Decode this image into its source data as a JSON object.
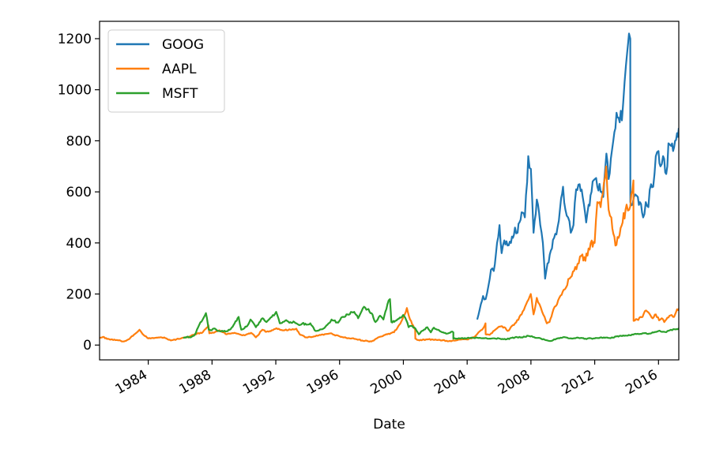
{
  "chart_data": {
    "type": "line",
    "title": "",
    "xlabel": "Date",
    "ylabel": "",
    "xlim": [
      "1980-12-12",
      "2017-04-10"
    ],
    "ylim": [
      -58,
      1268
    ],
    "grid": false,
    "legend_position": "top-left",
    "x_ticks": [
      "1984",
      "1988",
      "1992",
      "1996",
      "2000",
      "2004",
      "2008",
      "2012",
      "2016"
    ],
    "y_ticks": [
      0,
      200,
      400,
      600,
      800,
      1000,
      1200
    ],
    "series": [
      {
        "name": "GOOG",
        "color": "#1f77b4",
        "points": [
          [
            "2004-08-19",
            100
          ],
          [
            "2004-10-15",
            140
          ],
          [
            "2004-12-31",
            192
          ],
          [
            "2005-03-01",
            180
          ],
          [
            "2005-05-01",
            230
          ],
          [
            "2005-06-30",
            295
          ],
          [
            "2005-09-01",
            290
          ],
          [
            "2005-11-15",
            400
          ],
          [
            "2006-01-10",
            470
          ],
          [
            "2006-03-01",
            360
          ],
          [
            "2006-05-01",
            410
          ],
          [
            "2006-07-15",
            390
          ],
          [
            "2006-10-01",
            400
          ],
          [
            "2006-12-31",
            460
          ],
          [
            "2007-03-01",
            440
          ],
          [
            "2007-06-01",
            520
          ],
          [
            "2007-08-15",
            500
          ],
          [
            "2007-11-01",
            740
          ],
          [
            "2007-12-31",
            690
          ],
          [
            "2008-03-01",
            440
          ],
          [
            "2008-05-15",
            570
          ],
          [
            "2008-08-01",
            470
          ],
          [
            "2008-10-01",
            400
          ],
          [
            "2008-11-20",
            260
          ],
          [
            "2009-01-15",
            320
          ],
          [
            "2009-04-01",
            370
          ],
          [
            "2009-06-15",
            420
          ],
          [
            "2009-09-01",
            460
          ],
          [
            "2009-11-01",
            540
          ],
          [
            "2010-01-05",
            620
          ],
          [
            "2010-03-01",
            530
          ],
          [
            "2010-05-01",
            500
          ],
          [
            "2010-07-01",
            440
          ],
          [
            "2010-09-01",
            470
          ],
          [
            "2010-11-01",
            610
          ],
          [
            "2011-01-20",
            630
          ],
          [
            "2011-04-01",
            580
          ],
          [
            "2011-06-20",
            480
          ],
          [
            "2011-08-15",
            550
          ],
          [
            "2011-10-20",
            600
          ],
          [
            "2012-01-05",
            650
          ],
          [
            "2012-03-01",
            620
          ],
          [
            "2012-05-15",
            600
          ],
          [
            "2012-07-15",
            580
          ],
          [
            "2012-09-25",
            750
          ],
          [
            "2012-11-15",
            650
          ],
          [
            "2013-01-05",
            730
          ],
          [
            "2013-03-01",
            800
          ],
          [
            "2013-05-15",
            910
          ],
          [
            "2013-07-01",
            890
          ],
          [
            "2013-09-15",
            880
          ],
          [
            "2013-11-15",
            1030
          ],
          [
            "2014-01-15",
            1150
          ],
          [
            "2014-02-25",
            1220
          ],
          [
            "2014-03-26",
            1200
          ],
          [
            "2014-03-27",
            560
          ],
          [
            "2014-05-15",
            550
          ],
          [
            "2014-07-15",
            590
          ],
          [
            "2014-09-15",
            580
          ],
          [
            "2014-11-01",
            560
          ],
          [
            "2015-01-15",
            500
          ],
          [
            "2015-03-15",
            560
          ],
          [
            "2015-05-15",
            540
          ],
          [
            "2015-07-15",
            630
          ],
          [
            "2015-09-01",
            620
          ],
          [
            "2015-11-01",
            740
          ],
          [
            "2015-12-31",
            760
          ],
          [
            "2016-02-15",
            700
          ],
          [
            "2016-04-15",
            740
          ],
          [
            "2016-06-27",
            670
          ],
          [
            "2016-08-15",
            790
          ],
          [
            "2016-10-15",
            780
          ],
          [
            "2016-12-01",
            760
          ],
          [
            "2017-01-15",
            800
          ],
          [
            "2017-03-01",
            830
          ],
          [
            "2017-04-10",
            850
          ]
        ]
      },
      {
        "name": "AAPL",
        "color": "#ff7f0e",
        "points": [
          [
            "1980-12-12",
            28
          ],
          [
            "1981-03-01",
            32
          ],
          [
            "1981-06-01",
            24
          ],
          [
            "1981-09-01",
            22
          ],
          [
            "1982-01-01",
            20
          ],
          [
            "1982-06-01",
            14
          ],
          [
            "1982-10-01",
            22
          ],
          [
            "1983-01-15",
            36
          ],
          [
            "1983-06-15",
            60
          ],
          [
            "1983-09-15",
            40
          ],
          [
            "1984-01-01",
            26
          ],
          [
            "1984-06-01",
            28
          ],
          [
            "1985-01-01",
            30
          ],
          [
            "1985-06-01",
            18
          ],
          [
            "1985-12-01",
            24
          ],
          [
            "1986-06-01",
            30
          ],
          [
            "1986-12-01",
            42
          ],
          [
            "1987-06-01",
            50
          ],
          [
            "1987-09-01",
            68
          ],
          [
            "1987-10-10",
            78
          ],
          [
            "1987-11-01",
            46
          ],
          [
            "1988-03-01",
            50
          ],
          [
            "1988-06-15",
            58
          ],
          [
            "1988-12-01",
            42
          ],
          [
            "1989-06-01",
            48
          ],
          [
            "1989-12-01",
            38
          ],
          [
            "1990-03-01",
            42
          ],
          [
            "1990-06-15",
            48
          ],
          [
            "1990-10-01",
            30
          ],
          [
            "1991-03-01",
            60
          ],
          [
            "1991-06-01",
            52
          ],
          [
            "1991-10-01",
            58
          ],
          [
            "1992-01-15",
            66
          ],
          [
            "1992-06-01",
            58
          ],
          [
            "1992-12-01",
            60
          ],
          [
            "1993-04-15",
            64
          ],
          [
            "1993-07-15",
            40
          ],
          [
            "1993-12-01",
            30
          ],
          [
            "1994-06-01",
            34
          ],
          [
            "1994-10-01",
            40
          ],
          [
            "1995-01-01",
            40
          ],
          [
            "1995-06-01",
            46
          ],
          [
            "1995-09-01",
            40
          ],
          [
            "1995-12-31",
            34
          ],
          [
            "1996-06-01",
            28
          ],
          [
            "1996-12-31",
            24
          ],
          [
            "1997-06-01",
            18
          ],
          [
            "1997-12-31",
            14
          ],
          [
            "1998-06-01",
            30
          ],
          [
            "1998-12-31",
            42
          ],
          [
            "1999-06-01",
            50
          ],
          [
            "1999-10-01",
            80
          ],
          [
            "2000-01-01",
            110
          ],
          [
            "2000-03-22",
            145
          ],
          [
            "2000-06-01",
            100
          ],
          [
            "2000-09-28",
            60
          ],
          [
            "2000-10-01",
            25
          ],
          [
            "2001-01-01",
            18
          ],
          [
            "2001-06-01",
            22
          ],
          [
            "2002-01-01",
            22
          ],
          [
            "2002-06-01",
            18
          ],
          [
            "2003-01-01",
            15
          ],
          [
            "2003-06-01",
            20
          ],
          [
            "2003-12-31",
            22
          ],
          [
            "2004-06-01",
            30
          ],
          [
            "2004-12-31",
            65
          ],
          [
            "2005-02-25",
            85
          ],
          [
            "2005-03-01",
            42
          ],
          [
            "2005-06-01",
            40
          ],
          [
            "2005-12-31",
            72
          ],
          [
            "2006-05-01",
            70
          ],
          [
            "2006-07-15",
            55
          ],
          [
            "2006-12-31",
            85
          ],
          [
            "2007-06-01",
            120
          ],
          [
            "2007-12-28",
            200
          ],
          [
            "2008-03-01",
            120
          ],
          [
            "2008-05-15",
            185
          ],
          [
            "2008-07-15",
            160
          ],
          [
            "2008-09-15",
            130
          ],
          [
            "2008-12-31",
            85
          ],
          [
            "2009-03-01",
            90
          ],
          [
            "2009-06-01",
            140
          ],
          [
            "2009-12-31",
            210
          ],
          [
            "2010-06-01",
            260
          ],
          [
            "2010-12-31",
            320
          ],
          [
            "2011-03-01",
            350
          ],
          [
            "2011-06-01",
            330
          ],
          [
            "2011-10-01",
            400
          ],
          [
            "2011-12-31",
            400
          ],
          [
            "2012-03-01",
            560
          ],
          [
            "2012-05-15",
            540
          ],
          [
            "2012-09-19",
            700
          ],
          [
            "2012-11-15",
            530
          ],
          [
            "2013-01-15",
            500
          ],
          [
            "2013-04-19",
            390
          ],
          [
            "2013-07-01",
            420
          ],
          [
            "2013-10-01",
            480
          ],
          [
            "2014-01-01",
            550
          ],
          [
            "2014-03-01",
            530
          ],
          [
            "2014-06-06",
            645
          ],
          [
            "2014-06-09",
            95
          ],
          [
            "2014-09-01",
            100
          ],
          [
            "2014-12-31",
            110
          ],
          [
            "2015-02-23",
            133
          ],
          [
            "2015-05-15",
            128
          ],
          [
            "2015-08-24",
            105
          ],
          [
            "2015-11-01",
            120
          ],
          [
            "2016-01-15",
            97
          ],
          [
            "2016-03-15",
            105
          ],
          [
            "2016-05-12",
            90
          ],
          [
            "2016-08-15",
            108
          ],
          [
            "2016-10-25",
            118
          ],
          [
            "2016-12-01",
            110
          ],
          [
            "2017-01-15",
            120
          ],
          [
            "2017-03-01",
            140
          ],
          [
            "2017-04-10",
            143
          ]
        ]
      },
      {
        "name": "MSFT",
        "color": "#2ca02c",
        "points": [
          [
            "1986-03-13",
            28
          ],
          [
            "1986-06-01",
            32
          ],
          [
            "1986-09-01",
            30
          ],
          [
            "1986-12-01",
            40
          ],
          [
            "1987-03-15",
            80
          ],
          [
            "1987-06-01",
            100
          ],
          [
            "1987-08-15",
            125
          ],
          [
            "1987-10-19",
            60
          ],
          [
            "1987-12-01",
            58
          ],
          [
            "1988-03-01",
            65
          ],
          [
            "1988-06-01",
            55
          ],
          [
            "1988-12-01",
            54
          ],
          [
            "1989-03-01",
            62
          ],
          [
            "1989-06-01",
            85
          ],
          [
            "1989-09-01",
            110
          ],
          [
            "1989-11-01",
            60
          ],
          [
            "1990-03-01",
            72
          ],
          [
            "1990-06-01",
            100
          ],
          [
            "1990-10-01",
            70
          ],
          [
            "1991-03-01",
            105
          ],
          [
            "1991-06-01",
            90
          ],
          [
            "1991-10-01",
            110
          ],
          [
            "1992-01-10",
            130
          ],
          [
            "1992-04-01",
            85
          ],
          [
            "1992-08-01",
            95
          ],
          [
            "1992-12-01",
            90
          ],
          [
            "1993-03-01",
            90
          ],
          [
            "1993-06-01",
            80
          ],
          [
            "1993-09-01",
            85
          ],
          [
            "1993-12-01",
            80
          ],
          [
            "1994-03-01",
            85
          ],
          [
            "1994-07-01",
            55
          ],
          [
            "1994-12-01",
            62
          ],
          [
            "1995-04-01",
            80
          ],
          [
            "1995-07-01",
            100
          ],
          [
            "1995-12-01",
            88
          ],
          [
            "1996-03-01",
            110
          ],
          [
            "1996-07-01",
            120
          ],
          [
            "1996-12-01",
            130
          ],
          [
            "1997-03-01",
            105
          ],
          [
            "1997-07-15",
            150
          ],
          [
            "1997-10-01",
            140
          ],
          [
            "1998-01-01",
            125
          ],
          [
            "1998-04-01",
            90
          ],
          [
            "1998-07-15",
            115
          ],
          [
            "1998-10-01",
            100
          ],
          [
            "1999-01-01",
            160
          ],
          [
            "1999-03-01",
            180
          ],
          [
            "1999-04-01",
            90
          ],
          [
            "1999-07-01",
            95
          ],
          [
            "1999-12-27",
            118
          ],
          [
            "2000-03-01",
            100
          ],
          [
            "2000-05-01",
            70
          ],
          [
            "2000-07-01",
            75
          ],
          [
            "2000-10-01",
            65
          ],
          [
            "2000-12-20",
            42
          ],
          [
            "2001-03-01",
            55
          ],
          [
            "2001-07-01",
            70
          ],
          [
            "2001-09-21",
            50
          ],
          [
            "2001-12-01",
            68
          ],
          [
            "2002-03-01",
            60
          ],
          [
            "2002-07-01",
            50
          ],
          [
            "2002-10-01",
            45
          ],
          [
            "2003-01-01",
            52
          ],
          [
            "2003-02-18",
            50
          ],
          [
            "2003-02-19",
            25
          ],
          [
            "2003-06-01",
            25
          ],
          [
            "2003-12-31",
            27
          ],
          [
            "2004-06-01",
            28
          ],
          [
            "2004-12-31",
            27
          ],
          [
            "2005-06-01",
            25
          ],
          [
            "2005-12-31",
            26
          ],
          [
            "2006-06-01",
            22
          ],
          [
            "2006-12-31",
            30
          ],
          [
            "2007-06-01",
            30
          ],
          [
            "2007-11-01",
            36
          ],
          [
            "2008-06-01",
            28
          ],
          [
            "2008-12-31",
            19
          ],
          [
            "2009-03-09",
            16
          ],
          [
            "2009-12-31",
            30
          ],
          [
            "2010-06-01",
            26
          ],
          [
            "2010-12-31",
            28
          ],
          [
            "2011-06-01",
            25
          ],
          [
            "2011-12-31",
            26
          ],
          [
            "2012-06-01",
            30
          ],
          [
            "2012-12-31",
            27
          ],
          [
            "2013-06-01",
            35
          ],
          [
            "2013-12-31",
            37
          ],
          [
            "2014-06-01",
            41
          ],
          [
            "2014-12-31",
            46
          ],
          [
            "2015-06-01",
            45
          ],
          [
            "2015-12-31",
            55
          ],
          [
            "2016-06-01",
            51
          ],
          [
            "2016-12-31",
            62
          ],
          [
            "2017-04-10",
            65
          ]
        ]
      }
    ]
  }
}
